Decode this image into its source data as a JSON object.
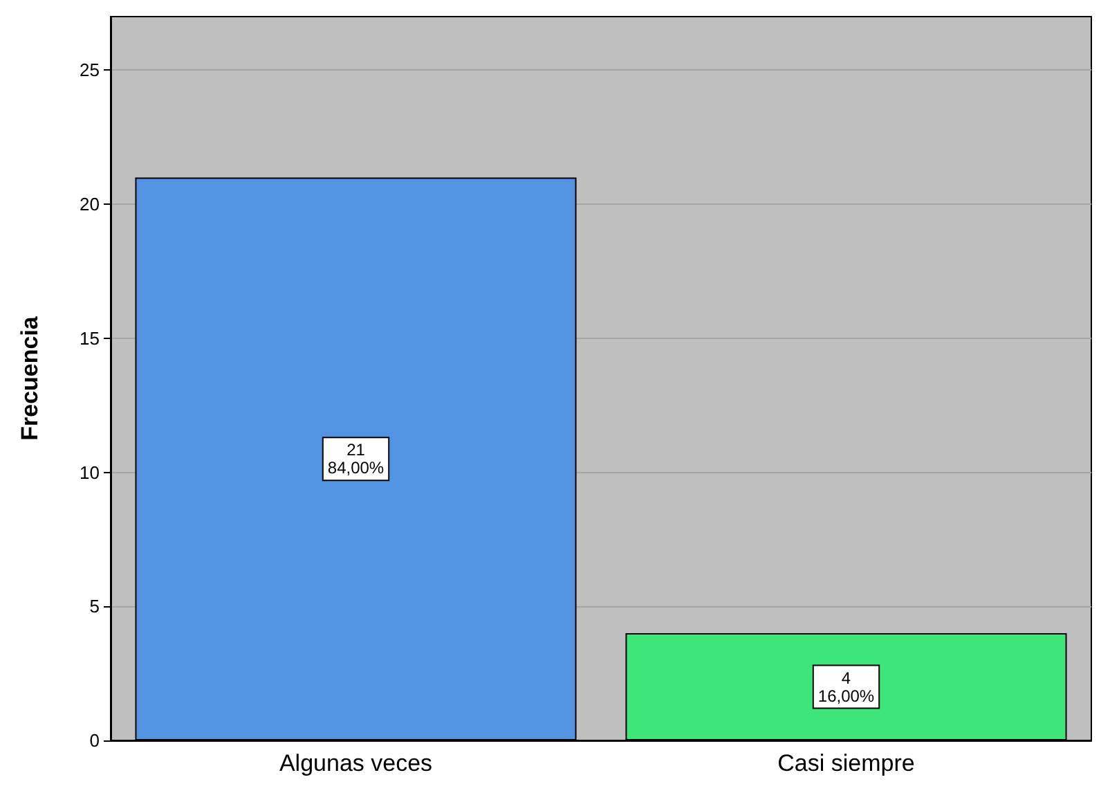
{
  "chart_data": {
    "type": "bar",
    "ylabel": "Frecuencia",
    "categories": [
      "Algunas veces",
      "Casi siempre"
    ],
    "values": [
      21,
      4
    ],
    "colors": [
      "#5294e2",
      "#3ee67a"
    ],
    "value_labels": [
      "21\n84,00%",
      "4\n16,00%"
    ],
    "ylim": [
      0,
      27
    ],
    "yticks": [
      0,
      5,
      10,
      15,
      20,
      25
    ],
    "grid": "y"
  }
}
